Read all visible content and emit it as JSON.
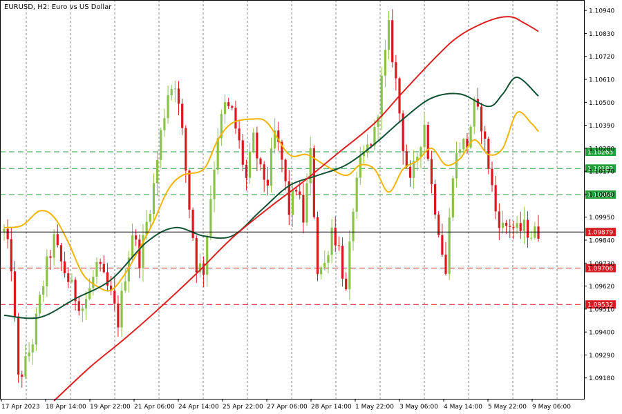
{
  "header": {
    "title": "EURUSD, H2:  Euro vs US Dollar"
  },
  "colors": {
    "bull": "#8bc34a",
    "bear": "#d71920",
    "ma_fast": "#f5b400",
    "ma_mid": "#0f5132",
    "ma_slow": "#dd2020",
    "level_green": "#23a03a",
    "level_red": "#d71920",
    "price_line": "#000000",
    "grid": "#000000"
  },
  "chart_data": {
    "type": "candlestick",
    "title": "EURUSD, H2:  Euro vs US Dollar",
    "grid": true,
    "ylim": [
      1.0908,
      1.1099
    ],
    "y_ticks": [
      "1.10940",
      "1.10830",
      "1.10720",
      "1.10610",
      "1.10500",
      "1.10390",
      "1.10280",
      "1.10170",
      "1.10060",
      "1.09950",
      "1.09840",
      "1.09730",
      "1.09620",
      "1.09510",
      "1.09400",
      "1.09290",
      "1.09180"
    ],
    "x_labels": [
      "17 Apr 2023",
      "18 Apr 14:00",
      "19 Apr 22:00",
      "21 Apr 06:00",
      "24 Apr 14:00",
      "25 Apr 22:00",
      "27 Apr 06:00",
      "28 Apr 14:00",
      "1 May 22:00",
      "3 May 06:00",
      "4 May 14:00",
      "5 May 22:00",
      "9 May 06:00"
    ],
    "candle_count": 151,
    "current_price": {
      "label": "1.09879",
      "value": 1.09879
    },
    "levels": [
      {
        "label": "1.10263",
        "value": 1.10263,
        "color": "green"
      },
      {
        "label": "1.10183",
        "value": 1.10183,
        "color": "green"
      },
      {
        "label": "1.10058",
        "value": 1.10058,
        "color": "green"
      },
      {
        "label": "1.09706",
        "value": 1.09706,
        "color": "red"
      },
      {
        "label": "1.09532",
        "value": 1.09532,
        "color": "red"
      }
    ],
    "anchors": [
      [
        0,
        1.0988
      ],
      [
        2,
        1.0972
      ],
      [
        4,
        1.0917
      ],
      [
        6,
        1.0925
      ],
      [
        8,
        1.0936
      ],
      [
        10,
        1.0955
      ],
      [
        12,
        1.0972
      ],
      [
        14,
        1.0984
      ],
      [
        16,
        1.0973
      ],
      [
        18,
        1.0965
      ],
      [
        20,
        1.0957
      ],
      [
        22,
        1.0952
      ],
      [
        24,
        1.096
      ],
      [
        26,
        1.0972
      ],
      [
        28,
        1.0965
      ],
      [
        30,
        1.0957
      ],
      [
        32,
        1.0945
      ],
      [
        34,
        1.0968
      ],
      [
        36,
        1.0988
      ],
      [
        38,
        1.0975
      ],
      [
        40,
        1.0992
      ],
      [
        42,
        1.101
      ],
      [
        44,
        1.1035
      ],
      [
        46,
        1.1055
      ],
      [
        48,
        1.106
      ],
      [
        50,
        1.1035
      ],
      [
        52,
        1.1
      ],
      [
        54,
        1.0972
      ],
      [
        56,
        1.097
      ],
      [
        58,
        1.1005
      ],
      [
        60,
        1.1035
      ],
      [
        62,
        1.1048
      ],
      [
        64,
        1.1045
      ],
      [
        66,
        1.103
      ],
      [
        68,
        1.1013
      ],
      [
        70,
        1.1032
      ],
      [
        72,
        1.1016
      ],
      [
        74,
        1.1012
      ],
      [
        76,
        1.1035
      ],
      [
        78,
        1.1022
      ],
      [
        80,
        1.0998
      ],
      [
        82,
        1.101
      ],
      [
        84,
        1.0994
      ],
      [
        86,
        1.1025
      ],
      [
        88,
        1.097
      ],
      [
        90,
        1.0972
      ],
      [
        92,
        1.099
      ],
      [
        94,
        1.098
      ],
      [
        96,
        1.0958
      ],
      [
        98,
        1.1
      ],
      [
        100,
        1.102
      ],
      [
        102,
        1.1028
      ],
      [
        104,
        1.1035
      ],
      [
        106,
        1.106
      ],
      [
        108,
        1.1085
      ],
      [
        110,
        1.106
      ],
      [
        112,
        1.103
      ],
      [
        114,
        1.101
      ],
      [
        116,
        1.1025
      ],
      [
        118,
        1.104
      ],
      [
        120,
        1.101
      ],
      [
        122,
        1.099
      ],
      [
        124,
        1.0968
      ],
      [
        126,
        1.1018
      ],
      [
        128,
        1.103
      ],
      [
        130,
        1.103
      ],
      [
        132,
        1.1048
      ],
      [
        134,
        1.104
      ],
      [
        136,
        1.102
      ],
      [
        138,
        1.0998
      ],
      [
        140,
        1.099
      ],
      [
        142,
        1.0992
      ],
      [
        144,
        1.0988
      ],
      [
        146,
        1.099
      ],
      [
        148,
        1.0987
      ],
      [
        150,
        1.09879
      ]
    ],
    "series": [
      {
        "name": "",
        "kind": "ma_fast",
        "points": [
          [
            0,
            1.099
          ],
          [
            5,
            1.0991
          ],
          [
            10,
            1.0998
          ],
          [
            14,
            1.0995
          ],
          [
            18,
            1.0983
          ],
          [
            22,
            1.0968
          ],
          [
            26,
            1.0962
          ],
          [
            30,
            1.096
          ],
          [
            34,
            1.0968
          ],
          [
            38,
            1.098
          ],
          [
            42,
            1.0993
          ],
          [
            46,
            1.1008
          ],
          [
            50,
            1.1015
          ],
          [
            56,
            1.1018
          ],
          [
            60,
            1.1032
          ],
          [
            64,
            1.104
          ],
          [
            70,
            1.1042
          ],
          [
            74,
            1.104
          ],
          [
            80,
            1.1025
          ],
          [
            85,
            1.1025
          ],
          [
            90,
            1.102
          ],
          [
            96,
            1.1015
          ],
          [
            100,
            1.102
          ],
          [
            104,
            1.1018
          ],
          [
            108,
            1.1007
          ],
          [
            112,
            1.1018
          ],
          [
            116,
            1.1022
          ],
          [
            120,
            1.1028
          ],
          [
            124,
            1.102
          ],
          [
            128,
            1.1023
          ],
          [
            132,
            1.1032
          ],
          [
            136,
            1.1025
          ],
          [
            140,
            1.1028
          ],
          [
            144,
            1.1045
          ],
          [
            148,
            1.104
          ],
          [
            150,
            1.1036
          ]
        ]
      },
      {
        "name": "",
        "kind": "ma_mid",
        "points": [
          [
            0,
            1.0948
          ],
          [
            10,
            1.0947
          ],
          [
            20,
            1.0956
          ],
          [
            30,
            1.0965
          ],
          [
            40,
            1.0983
          ],
          [
            48,
            1.099
          ],
          [
            56,
            1.0986
          ],
          [
            64,
            1.0986
          ],
          [
            72,
            1.0998
          ],
          [
            80,
            1.101
          ],
          [
            88,
            1.1015
          ],
          [
            96,
            1.102
          ],
          [
            104,
            1.103
          ],
          [
            112,
            1.1042
          ],
          [
            120,
            1.1052
          ],
          [
            128,
            1.1054
          ],
          [
            136,
            1.1048
          ],
          [
            140,
            1.1054
          ],
          [
            144,
            1.1062
          ],
          [
            150,
            1.1053
          ]
        ]
      },
      {
        "name": "",
        "kind": "ma_slow",
        "points": [
          [
            14,
            1.0907
          ],
          [
            24,
            1.0923
          ],
          [
            34,
            1.0937
          ],
          [
            44,
            1.0952
          ],
          [
            54,
            1.0968
          ],
          [
            64,
            1.0985
          ],
          [
            74,
            1.0999
          ],
          [
            84,
            1.1012
          ],
          [
            94,
            1.1026
          ],
          [
            104,
            1.104
          ],
          [
            112,
            1.1055
          ],
          [
            122,
            1.1073
          ],
          [
            128,
            1.1082
          ],
          [
            136,
            1.1089
          ],
          [
            142,
            1.1091
          ],
          [
            146,
            1.1088
          ],
          [
            150,
            1.1084
          ]
        ]
      }
    ]
  }
}
